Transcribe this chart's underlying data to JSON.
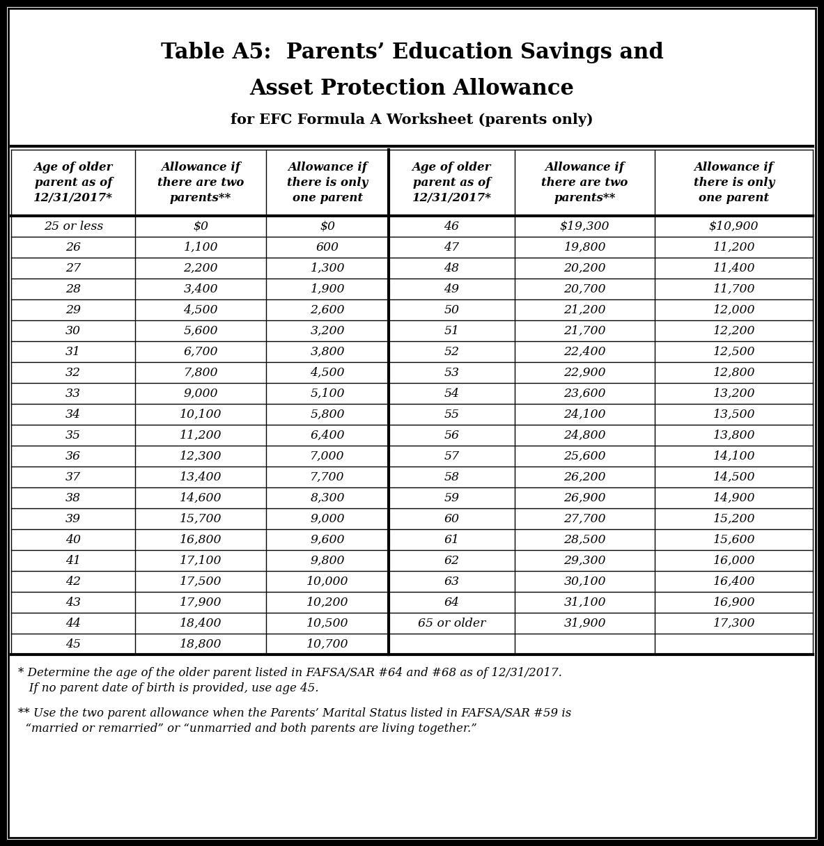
{
  "title_line1": "Table A5:  Parents’ Education Savings and",
  "title_line2": "Asset Protection Allowance",
  "subtitle": "for EFC Formula A Worksheet (parents only)",
  "col_headers": [
    "Age of older\nparent as of\n12/31/2017*",
    "Allowance if\nthere are two\nparents**",
    "Allowance if\nthere is only\none parent",
    "Age of older\nparent as of\n12/31/2017*",
    "Allowance if\nthere are two\nparents**",
    "Allowance if\nthere is only\none parent"
  ],
  "left_data": [
    [
      "25 or less",
      "$0",
      "$0"
    ],
    [
      "26",
      "1,100",
      "600"
    ],
    [
      "27",
      "2,200",
      "1,300"
    ],
    [
      "28",
      "3,400",
      "1,900"
    ],
    [
      "29",
      "4,500",
      "2,600"
    ],
    [
      "30",
      "5,600",
      "3,200"
    ],
    [
      "31",
      "6,700",
      "3,800"
    ],
    [
      "32",
      "7,800",
      "4,500"
    ],
    [
      "33",
      "9,000",
      "5,100"
    ],
    [
      "34",
      "10,100",
      "5,800"
    ],
    [
      "35",
      "11,200",
      "6,400"
    ],
    [
      "36",
      "12,300",
      "7,000"
    ],
    [
      "37",
      "13,400",
      "7,700"
    ],
    [
      "38",
      "14,600",
      "8,300"
    ],
    [
      "39",
      "15,700",
      "9,000"
    ],
    [
      "40",
      "16,800",
      "9,600"
    ],
    [
      "41",
      "17,100",
      "9,800"
    ],
    [
      "42",
      "17,500",
      "10,000"
    ],
    [
      "43",
      "17,900",
      "10,200"
    ],
    [
      "44",
      "18,400",
      "10,500"
    ],
    [
      "45",
      "18,800",
      "10,700"
    ]
  ],
  "right_data": [
    [
      "46",
      "$19,300",
      "$10,900"
    ],
    [
      "47",
      "19,800",
      "11,200"
    ],
    [
      "48",
      "20,200",
      "11,400"
    ],
    [
      "49",
      "20,700",
      "11,700"
    ],
    [
      "50",
      "21,200",
      "12,000"
    ],
    [
      "51",
      "21,700",
      "12,200"
    ],
    [
      "52",
      "22,400",
      "12,500"
    ],
    [
      "53",
      "22,900",
      "12,800"
    ],
    [
      "54",
      "23,600",
      "13,200"
    ],
    [
      "55",
      "24,100",
      "13,500"
    ],
    [
      "56",
      "24,800",
      "13,800"
    ],
    [
      "57",
      "25,600",
      "14,100"
    ],
    [
      "58",
      "26,200",
      "14,500"
    ],
    [
      "59",
      "26,900",
      "14,900"
    ],
    [
      "60",
      "27,700",
      "15,200"
    ],
    [
      "61",
      "28,500",
      "15,600"
    ],
    [
      "62",
      "29,300",
      "16,000"
    ],
    [
      "63",
      "30,100",
      "16,400"
    ],
    [
      "64",
      "31,100",
      "16,900"
    ],
    [
      "65 or older",
      "31,900",
      "17,300"
    ],
    [
      "",
      "",
      ""
    ]
  ],
  "footnote1_star": "*",
  "footnote1_text1": " Determine the age of the older parent listed in FAFSA/SAR #64 and #68 as of 12/31/2017.",
  "footnote1_text2": "   If no parent date of birth is provided, use age 45.",
  "footnote2_star": "**",
  "footnote2_text1": " Use the two parent allowance when the Parents’ Marital Status listed in FAFSA/SAR #59 is",
  "footnote2_text2": "  “married or remarried” or “unmarried and both parents are living together.”",
  "bg_color": "#ffffff",
  "border_color": "#000000",
  "text_color": "#000000"
}
